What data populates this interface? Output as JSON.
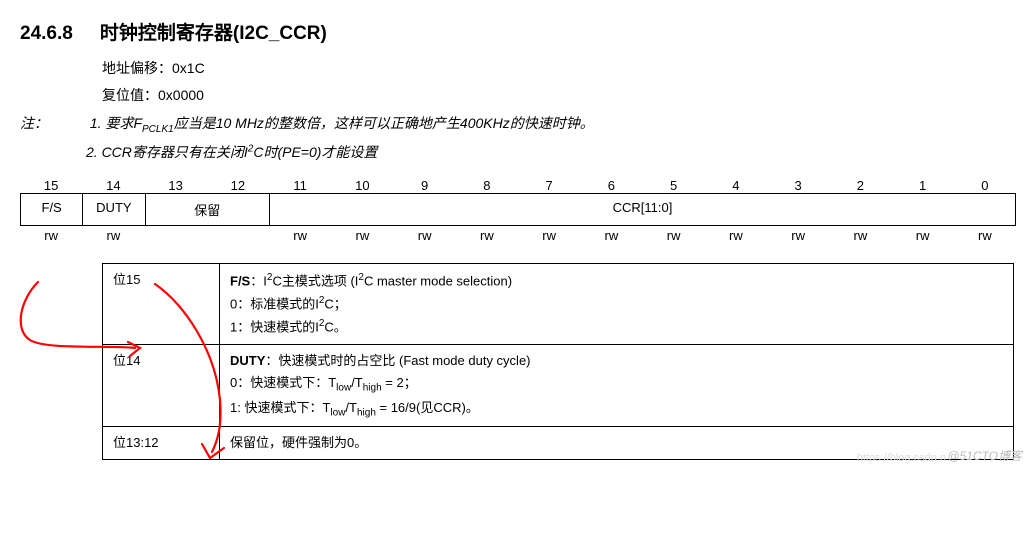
{
  "heading": {
    "number": "24.6.8",
    "title": "时钟控制寄存器(I2C_CCR)"
  },
  "info": {
    "addr_label": "地址偏移：",
    "addr_value": "0x1C",
    "reset_label": "复位值：",
    "reset_value": "0x0000"
  },
  "notes": {
    "label": "注：",
    "n1_pre": "1. 要求F",
    "n1_sub": "PCLK1",
    "n1_post": "应当是10 MHz的整数倍，这样可以正确地产生400KHz的快速时钟。",
    "n2_pre": "2. CCR寄存器只有在关闭I",
    "n2_sup": "2",
    "n2_post": "C时(PE=0)才能设置"
  },
  "bits": [
    "15",
    "14",
    "13",
    "12",
    "11",
    "10",
    "9",
    "8",
    "7",
    "6",
    "5",
    "4",
    "3",
    "2",
    "1",
    "0"
  ],
  "fields": {
    "f15": "F/S",
    "f14": "DUTY",
    "f13_12": "保留",
    "f11_0": "CCR[11:0]"
  },
  "rw": [
    "rw",
    "rw",
    "",
    "",
    "rw",
    "rw",
    "rw",
    "rw",
    "rw",
    "rw",
    "rw",
    "rw",
    "rw",
    "rw",
    "rw",
    "rw"
  ],
  "desc": {
    "r1": {
      "bit": "位15",
      "name": "F/S",
      "sep": "：",
      "zh_pre": "I",
      "zh_sup": "2",
      "zh_post": "C主模式选项 (I",
      "zh_sup2": "2",
      "zh_post2": "C master mode selection)",
      "l0_pre": "0：标准模式的I",
      "l0_sup": "2",
      "l0_post": "C；",
      "l1_pre": "1：快速模式的I",
      "l1_sup": "2",
      "l1_post": "C。"
    },
    "r2": {
      "bit": "位14",
      "name": "DUTY",
      "sep": "：",
      "zh": "快速模式时的占空比 (Fast mode duty cycle)",
      "l0_pre": "0：快速模式下：T",
      "l0_sub1": "low",
      "l0_mid": "/T",
      "l0_sub2": "high",
      "l0_post": " = 2；",
      "l1_pre": "1: 快速模式下：T",
      "l1_sub1": "low",
      "l1_mid": "/T",
      "l1_sub2": "high",
      "l1_post": " = 16/9(见CCR)。"
    },
    "r3": {
      "bit": "位13:12",
      "text": "保留位，硬件强制为0。"
    }
  },
  "watermark": "@51CTO博客",
  "watermark2": "https://blog.csdn.n",
  "style": {
    "unit_w": 62.25,
    "annot_color": "#ff0000",
    "annot_stroke": 2.2
  }
}
